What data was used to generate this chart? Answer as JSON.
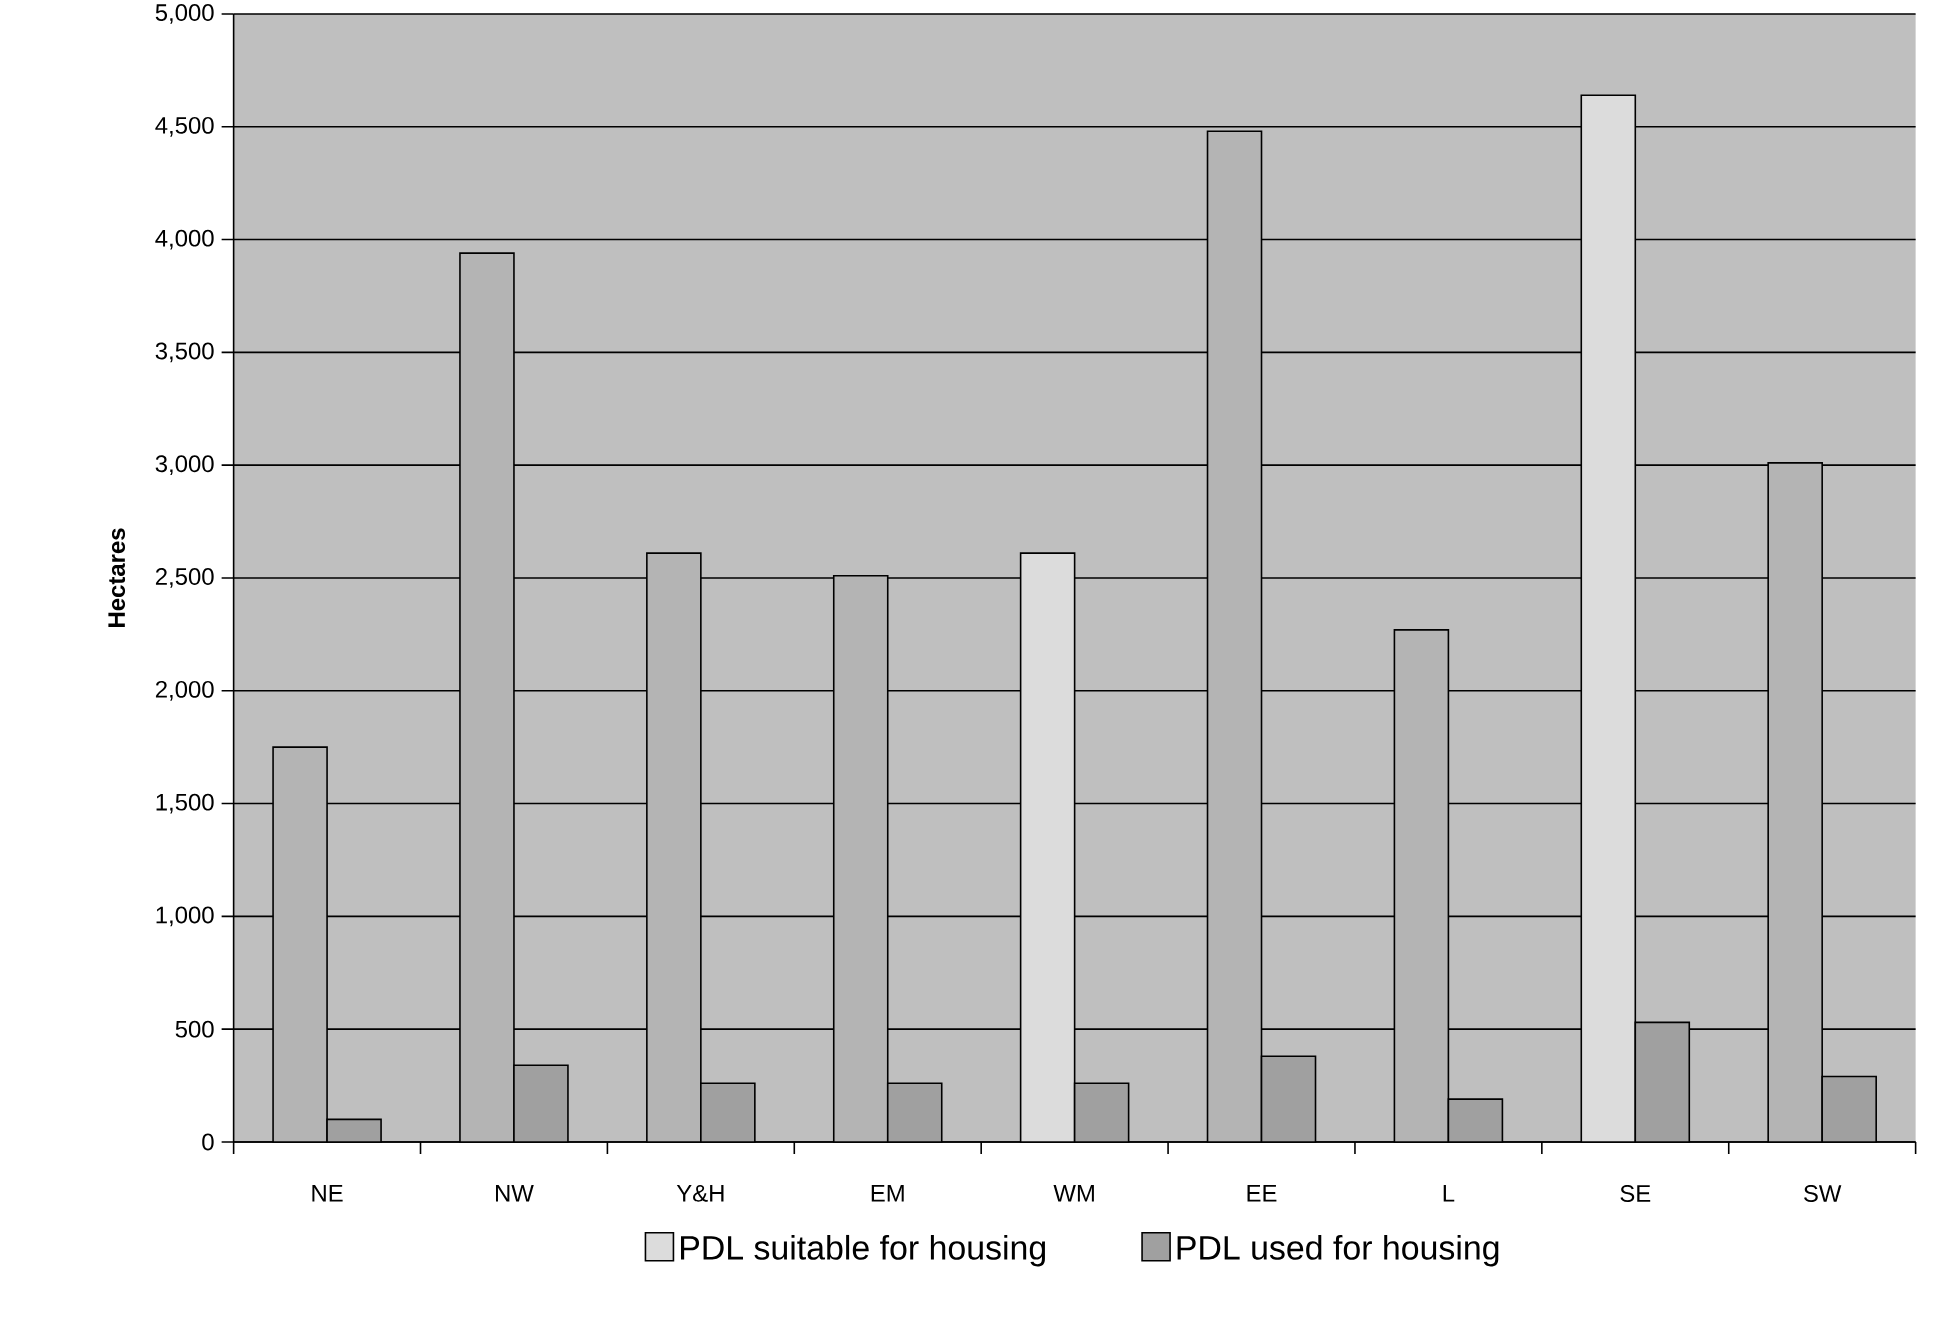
{
  "chart_data": {
    "type": "bar",
    "ylabel": "Hectares",
    "categories": [
      "NE",
      "NW",
      "Y&H",
      "EM",
      "WM",
      "EE",
      "L",
      "SE",
      "SW"
    ],
    "series": [
      {
        "name": "PDL suitable for housing",
        "color": "#dcdcdc",
        "colors": [
          "#b4b4b4",
          "#b4b4b4",
          "#b4b4b4",
          "#b4b4b4",
          "#dcdcdc",
          "#b4b4b4",
          "#b4b4b4",
          "#dcdcdc",
          "#b4b4b4"
        ],
        "values": [
          1750,
          3940,
          2610,
          2510,
          2610,
          4480,
          2270,
          4640,
          3010
        ]
      },
      {
        "name": "PDL used for housing",
        "color": "#a0a0a0",
        "values": [
          100,
          340,
          260,
          260,
          260,
          380,
          190,
          530,
          290
        ]
      }
    ],
    "ylim": [
      0,
      5000
    ],
    "yticks": [
      0,
      500,
      {
        "value": 1000,
        "label": "1,000"
      },
      {
        "value": 1500,
        "label": "1,500"
      },
      {
        "value": 2000,
        "label": "2,000"
      },
      {
        "value": 2500,
        "label": "2,500"
      },
      {
        "value": 3000,
        "label": "3,000"
      },
      {
        "value": 3500,
        "label": "3,500"
      },
      {
        "value": 4000,
        "label": "4,000"
      },
      {
        "value": 4500,
        "label": "4,500"
      },
      {
        "value": 5000,
        "label": "5,000"
      }
    ],
    "grid": "y",
    "legend": "bottom"
  }
}
